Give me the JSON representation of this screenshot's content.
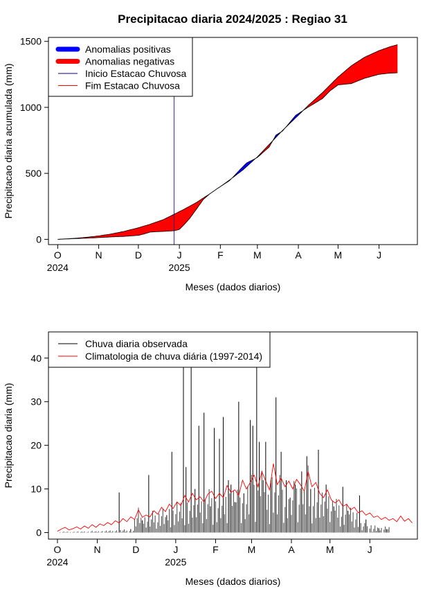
{
  "figure": {
    "title": "Precipitacao diaria 2024/2025 : Regiao 31"
  },
  "chart_data": [
    {
      "type": "area",
      "ylabel": "Precipitacao diaria acumulada (mm)",
      "xlabel": "Meses (dados diarios)",
      "xlim_days": [
        -7,
        272
      ],
      "ylim": [
        -40,
        1530
      ],
      "x_ticks": [
        {
          "label": "O",
          "sub": "2024",
          "day": 0
        },
        {
          "label": "N",
          "sub": "",
          "day": 31
        },
        {
          "label": "D",
          "sub": "",
          "day": 61
        },
        {
          "label": "J",
          "sub": "2025",
          "day": 92
        },
        {
          "label": "F",
          "sub": "",
          "day": 123
        },
        {
          "label": "M",
          "sub": "",
          "day": 151
        },
        {
          "label": "A",
          "sub": "",
          "day": 182
        },
        {
          "label": "M",
          "sub": "",
          "day": 212
        },
        {
          "label": "J",
          "sub": "",
          "day": 243
        }
      ],
      "y_ticks": [
        0,
        500,
        1000,
        1500
      ],
      "rainy_season_start_day": 88,
      "climatology_cumulative": [
        [
          0,
          0
        ],
        [
          10,
          6
        ],
        [
          20,
          14
        ],
        [
          31,
          26
        ],
        [
          40,
          40
        ],
        [
          50,
          60
        ],
        [
          61,
          88
        ],
        [
          70,
          115
        ],
        [
          80,
          150
        ],
        [
          88,
          190
        ],
        [
          95,
          225
        ],
        [
          105,
          280
        ],
        [
          115,
          345
        ],
        [
          123,
          400
        ],
        [
          130,
          450
        ],
        [
          140,
          525
        ],
        [
          151,
          625
        ],
        [
          160,
          720
        ],
        [
          170,
          825
        ],
        [
          182,
          940
        ],
        [
          190,
          1020
        ],
        [
          200,
          1110
        ],
        [
          212,
          1230
        ],
        [
          222,
          1315
        ],
        [
          232,
          1380
        ],
        [
          243,
          1430
        ],
        [
          252,
          1462
        ],
        [
          257,
          1475
        ]
      ],
      "observed_cumulative": [
        [
          0,
          0
        ],
        [
          10,
          4
        ],
        [
          20,
          8
        ],
        [
          31,
          13
        ],
        [
          40,
          18
        ],
        [
          50,
          22
        ],
        [
          61,
          30
        ],
        [
          65,
          40
        ],
        [
          70,
          55
        ],
        [
          80,
          60
        ],
        [
          88,
          65
        ],
        [
          92,
          75
        ],
        [
          95,
          105
        ],
        [
          100,
          160
        ],
        [
          105,
          230
        ],
        [
          110,
          300
        ],
        [
          115,
          345
        ],
        [
          123,
          400
        ],
        [
          130,
          445
        ],
        [
          138,
          530
        ],
        [
          143,
          580
        ],
        [
          151,
          620
        ],
        [
          160,
          700
        ],
        [
          165,
          790
        ],
        [
          170,
          820
        ],
        [
          175,
          880
        ],
        [
          180,
          940
        ],
        [
          190,
          1005
        ],
        [
          200,
          1065
        ],
        [
          206,
          1125
        ],
        [
          212,
          1170
        ],
        [
          222,
          1180
        ],
        [
          232,
          1220
        ],
        [
          243,
          1250
        ],
        [
          250,
          1258
        ],
        [
          257,
          1262
        ]
      ],
      "legend": [
        {
          "label": "Anomalias positivas",
          "color": "#0000ff",
          "kind": "thick-line"
        },
        {
          "label": "Anomalias negativas",
          "color": "#ff0000",
          "kind": "thick-line"
        },
        {
          "label": "Inicio Estacao Chuvosa",
          "color": "#00008b",
          "kind": "thin-line"
        },
        {
          "label": "Fim Estacao Chuvosa",
          "color": "#ff0000",
          "kind": "thin-line"
        }
      ],
      "legend_position": "top-left",
      "grid": false
    },
    {
      "type": "bar",
      "ylabel": "Precipitacao diaria (mm)",
      "xlabel": "Meses (dados diarios)",
      "xlim_days": [
        -7,
        280
      ],
      "ylim": [
        -1.5,
        46
      ],
      "x_ticks": [
        {
          "label": "O",
          "sub": "2024",
          "day": 0
        },
        {
          "label": "N",
          "sub": "",
          "day": 31
        },
        {
          "label": "D",
          "sub": "",
          "day": 61
        },
        {
          "label": "J",
          "sub": "2025",
          "day": 92
        },
        {
          "label": "F",
          "sub": "",
          "day": 123
        },
        {
          "label": "M",
          "sub": "",
          "day": 151
        },
        {
          "label": "A",
          "sub": "",
          "day": 182
        },
        {
          "label": "M",
          "sub": "",
          "day": 212
        },
        {
          "label": "J",
          "sub": "",
          "day": 243
        }
      ],
      "y_ticks": [
        0,
        10,
        20,
        30,
        40
      ],
      "observed_daily_peaks": [
        [
          48,
          9.2
        ],
        [
          57,
          0.8
        ],
        [
          66,
          2.8
        ],
        [
          71,
          13.2
        ],
        [
          85,
          4.0
        ],
        [
          89,
          18.5
        ],
        [
          98,
          39.0
        ],
        [
          100,
          15.0
        ],
        [
          104,
          38.5
        ],
        [
          107,
          10.0
        ],
        [
          110,
          24.5
        ],
        [
          114,
          27.5
        ],
        [
          119,
          6.0
        ],
        [
          122,
          24.0
        ],
        [
          126,
          21.5
        ],
        [
          129,
          26.5
        ],
        [
          133,
          12.0
        ],
        [
          135,
          11.0
        ],
        [
          138,
          7.0
        ],
        [
          141,
          30.0
        ],
        [
          145,
          9.0
        ],
        [
          150,
          25.8
        ],
        [
          152,
          24.5
        ],
        [
          155,
          43.2
        ],
        [
          157,
          20.8
        ],
        [
          160,
          12.0
        ],
        [
          162,
          20.8
        ],
        [
          166,
          12.0
        ],
        [
          170,
          31.0
        ],
        [
          174,
          18.5
        ],
        [
          178,
          12.0
        ],
        [
          181,
          8.0
        ],
        [
          185,
          11.0
        ],
        [
          190,
          14.0
        ],
        [
          194,
          17.5
        ],
        [
          197,
          10.0
        ],
        [
          203,
          19.0
        ],
        [
          209,
          11.0
        ],
        [
          215,
          6.0
        ],
        [
          222,
          10.5
        ],
        [
          226,
          5.0
        ],
        [
          235,
          8.5
        ],
        [
          240,
          3.0
        ],
        [
          250,
          1.0
        ],
        [
          256,
          0.8
        ]
      ],
      "climatology_daily": [
        [
          0,
          0.3
        ],
        [
          3,
          0.8
        ],
        [
          6,
          1.2
        ],
        [
          9,
          0.6
        ],
        [
          12,
          0.9
        ],
        [
          15,
          1.3
        ],
        [
          18,
          0.8
        ],
        [
          21,
          1.5
        ],
        [
          24,
          1.0
        ],
        [
          27,
          1.8
        ],
        [
          30,
          1.2
        ],
        [
          33,
          2.0
        ],
        [
          36,
          1.6
        ],
        [
          39,
          2.3
        ],
        [
          42,
          1.8
        ],
        [
          45,
          2.7
        ],
        [
          48,
          2.2
        ],
        [
          51,
          3.2
        ],
        [
          54,
          2.5
        ],
        [
          57,
          3.6
        ],
        [
          60,
          3.0
        ],
        [
          63,
          5.2
        ],
        [
          66,
          3.5
        ],
        [
          69,
          4.0
        ],
        [
          72,
          3.6
        ],
        [
          75,
          5.0
        ],
        [
          78,
          4.2
        ],
        [
          81,
          5.8
        ],
        [
          84,
          4.8
        ],
        [
          87,
          6.5
        ],
        [
          90,
          5.5
        ],
        [
          93,
          7.0
        ],
        [
          96,
          6.2
        ],
        [
          99,
          8.5
        ],
        [
          102,
          7.0
        ],
        [
          105,
          9.0
        ],
        [
          108,
          7.5
        ],
        [
          111,
          8.2
        ],
        [
          114,
          7.0
        ],
        [
          117,
          8.8
        ],
        [
          120,
          9.5
        ],
        [
          123,
          7.8
        ],
        [
          126,
          9.0
        ],
        [
          129,
          8.0
        ],
        [
          132,
          10.8
        ],
        [
          135,
          9.2
        ],
        [
          138,
          9.8
        ],
        [
          141,
          8.5
        ],
        [
          144,
          12.0
        ],
        [
          147,
          10.0
        ],
        [
          150,
          11.5
        ],
        [
          153,
          13.2
        ],
        [
          156,
          10.5
        ],
        [
          159,
          14.0
        ],
        [
          162,
          11.8
        ],
        [
          165,
          9.8
        ],
        [
          168,
          15.8
        ],
        [
          171,
          11.0
        ],
        [
          174,
          12.5
        ],
        [
          177,
          10.5
        ],
        [
          180,
          11.8
        ],
        [
          183,
          10.0
        ],
        [
          186,
          12.2
        ],
        [
          189,
          11.0
        ],
        [
          192,
          9.5
        ],
        [
          195,
          14.0
        ],
        [
          198,
          10.5
        ],
        [
          201,
          11.5
        ],
        [
          204,
          9.0
        ],
        [
          207,
          8.0
        ],
        [
          210,
          9.8
        ],
        [
          213,
          7.5
        ],
        [
          216,
          6.8
        ],
        [
          219,
          7.5
        ],
        [
          222,
          6.0
        ],
        [
          225,
          6.5
        ],
        [
          228,
          5.2
        ],
        [
          231,
          5.8
        ],
        [
          234,
          4.5
        ],
        [
          237,
          5.0
        ],
        [
          240,
          4.0
        ],
        [
          243,
          4.5
        ],
        [
          246,
          3.5
        ],
        [
          249,
          3.8
        ],
        [
          252,
          3.0
        ],
        [
          255,
          3.5
        ],
        [
          258,
          2.8
        ],
        [
          261,
          3.2
        ],
        [
          264,
          2.5
        ],
        [
          267,
          3.8
        ],
        [
          270,
          2.6
        ],
        [
          273,
          3.2
        ],
        [
          276,
          2.2
        ]
      ],
      "legend": [
        {
          "label": "Chuva diaria observada",
          "color": "#000000",
          "kind": "thin-line"
        },
        {
          "label": "Climatologia de chuva diária (1997-2014)",
          "color": "#ff0000",
          "kind": "thin-line"
        }
      ],
      "legend_position": "top-left",
      "grid": false
    }
  ]
}
